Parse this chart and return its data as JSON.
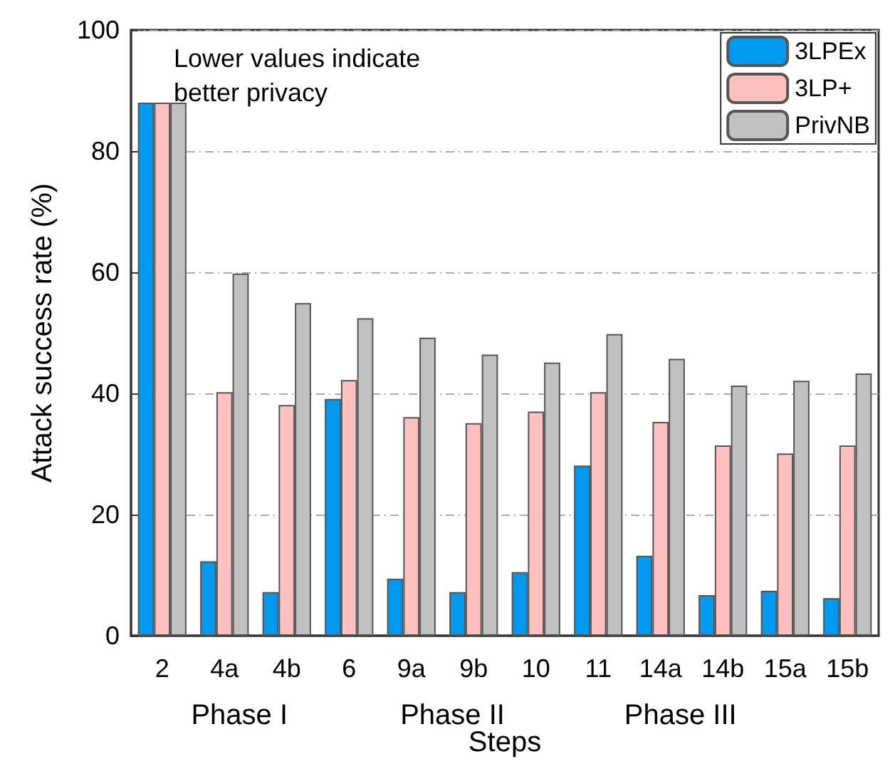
{
  "chart_data": {
    "type": "bar",
    "xlabel": "Steps",
    "ylabel": "Attack success rate (%)",
    "categories": [
      "2",
      "4a",
      "4b",
      "6",
      "9a",
      "9b",
      "10",
      "11",
      "14a",
      "14b",
      "15a",
      "15b"
    ],
    "series": [
      {
        "name": "3LPEx",
        "color": "#0099f0",
        "values": [
          88,
          12.3,
          7.2,
          39.1,
          9.4,
          7.2,
          10.5,
          28.1,
          13.2,
          6.7,
          7.4,
          6.2
        ]
      },
      {
        "name": "3LP+",
        "color": "#ffc0c0",
        "values": [
          88,
          40.2,
          38.1,
          42.2,
          36.1,
          35.1,
          37.0,
          40.2,
          35.3,
          31.4,
          30.1,
          31.4
        ]
      },
      {
        "name": "PrivNB",
        "color": "#c0c0c0",
        "values": [
          88,
          59.8,
          54.9,
          52.4,
          49.2,
          46.4,
          45.1,
          49.8,
          45.7,
          41.3,
          42.1,
          43.3
        ]
      }
    ],
    "ylim": [
      0,
      100
    ],
    "yticks": [
      0,
      20,
      40,
      60,
      80,
      100
    ],
    "grid": "y",
    "legend": "top right",
    "annotations": [
      "Lower values indicate better privacy",
      "Phase I",
      "Phase II",
      "Phase III"
    ]
  }
}
